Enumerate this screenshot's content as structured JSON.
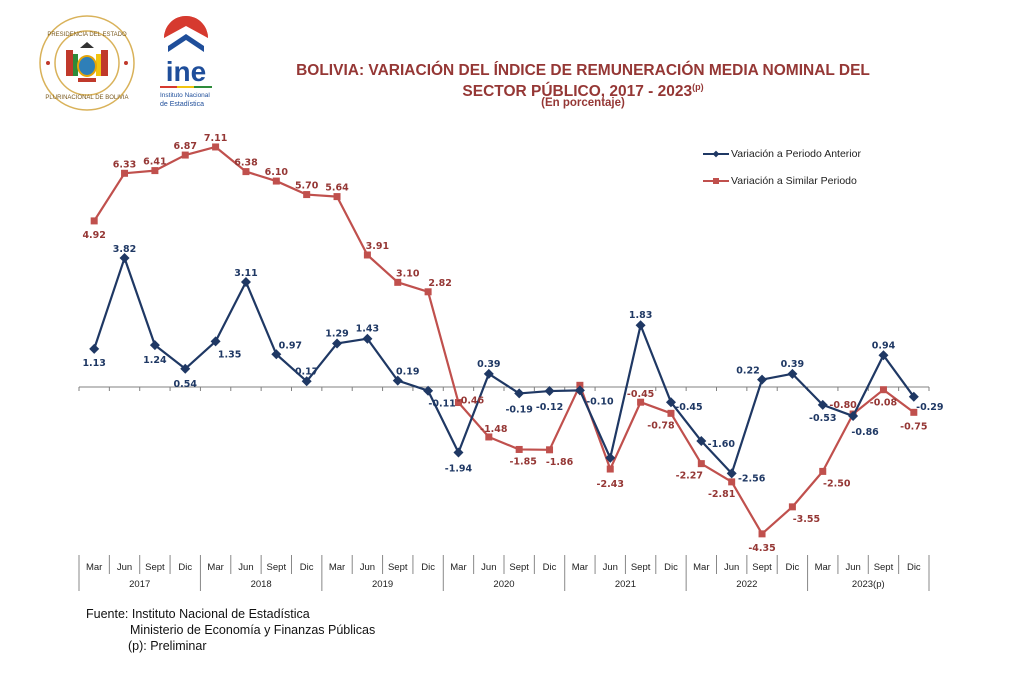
{
  "header": {
    "seal_name": "Presidencia del Estado Plurinacional de Bolivia",
    "seal_top_text": "PRESIDENCIA DEL ESTADO",
    "seal_bottom_text": "PLURINACIONAL DE BOLIVIA",
    "ine_logo_text": "ine",
    "ine_subtitle_line1": "Instituto Nacional",
    "ine_subtitle_line2": "de Estadística"
  },
  "colors": {
    "series_anterior": "#1F3864",
    "series_similar": "#C0504D",
    "title": "#953735",
    "axis": "#808080"
  },
  "chart_data": {
    "type": "line",
    "title_line1": "BOLIVIA: VARIACIÓN DEL ÍNDICE DE REMUNERACIÓN MEDIA NOMINAL DEL",
    "title_line2": "SECTOR PÚBLICO,  2017 - 2023",
    "title_sup": "(p)",
    "subtitle": "(En porcentaje)",
    "xlabel": "",
    "ylabel": "",
    "ylim": [
      -4.8,
      7.6
    ],
    "grid": false,
    "legend_position": "top-right",
    "quarters": [
      "Mar",
      "Jun",
      "Sept",
      "Dic"
    ],
    "years": [
      "2017",
      "2018",
      "2019",
      "2020",
      "2021",
      "2022",
      "2023(p)"
    ],
    "categories": [
      "Mar 2017",
      "Jun 2017",
      "Sept 2017",
      "Dic 2017",
      "Mar 2018",
      "Jun 2018",
      "Sept 2018",
      "Dic 2018",
      "Mar 2019",
      "Jun 2019",
      "Sept 2019",
      "Dic 2019",
      "Mar 2020",
      "Jun 2020",
      "Sept 2020",
      "Dic 2020",
      "Mar 2021",
      "Jun 2021",
      "Sept 2021",
      "Dic 2021",
      "Mar 2022",
      "Jun 2022",
      "Sept 2022",
      "Dic 2022",
      "Mar 2023",
      "Jun 2023",
      "Sept 2023",
      "Dic 2023"
    ],
    "series": [
      {
        "name": "Variación a Periodo Anterior",
        "marker": "diamond",
        "values": [
          1.13,
          3.82,
          1.24,
          0.54,
          1.35,
          3.11,
          0.97,
          0.17,
          1.29,
          1.43,
          0.19,
          -0.11,
          -1.94,
          0.39,
          -0.19,
          -0.12,
          -0.1,
          -2.1,
          1.83,
          -0.45,
          -1.6,
          -2.56,
          0.22,
          0.39,
          -0.53,
          -0.86,
          0.94,
          -0.29
        ],
        "labels": [
          "1.13",
          "3.82",
          "1.24",
          "0.54",
          "1.35",
          "3.11",
          "0.97",
          "0.17",
          "1.29",
          "1.43",
          "0.19",
          "-0.11",
          "-1.94",
          "0.39",
          "-0.19",
          "-0.12",
          "-0.10",
          "",
          "1.83",
          "-0.45",
          "-1.60",
          "-2.56",
          "0.22",
          "0.39",
          "-0.53",
          "-0.86",
          "0.94",
          "-0.29"
        ]
      },
      {
        "name": "Variación a Similar Periodo",
        "marker": "square",
        "values": [
          4.92,
          6.33,
          6.41,
          6.87,
          7.11,
          6.38,
          6.1,
          5.7,
          5.64,
          3.91,
          3.1,
          2.82,
          -0.46,
          -1.48,
          -1.85,
          -1.86,
          0.05,
          -2.43,
          -0.45,
          -0.78,
          -2.27,
          -2.81,
          -4.35,
          -3.55,
          -2.5,
          -0.8,
          -0.08,
          -0.75
        ],
        "labels": [
          "4.92",
          "6.33",
          "6.41",
          "6.87",
          "7.11",
          "6.38",
          "6.10",
          "5.70",
          "5.64",
          "3.91",
          "3.10",
          "2.82",
          "-0.46",
          "-1.48",
          "-1.85",
          "-1.86",
          "",
          "-2.43",
          "-0.45",
          "-0.78",
          "-2.27",
          "-2.81",
          "-4.35",
          "-3.55",
          "-2.50",
          "-0.80",
          "-0.08",
          "-0.75"
        ]
      }
    ]
  },
  "footer": {
    "source_label": "Fuente: Instituto Nacional de Estadística",
    "source_line2": "Ministerio de Economía y Finanzas Públicas",
    "note": "(p): Preliminar"
  }
}
